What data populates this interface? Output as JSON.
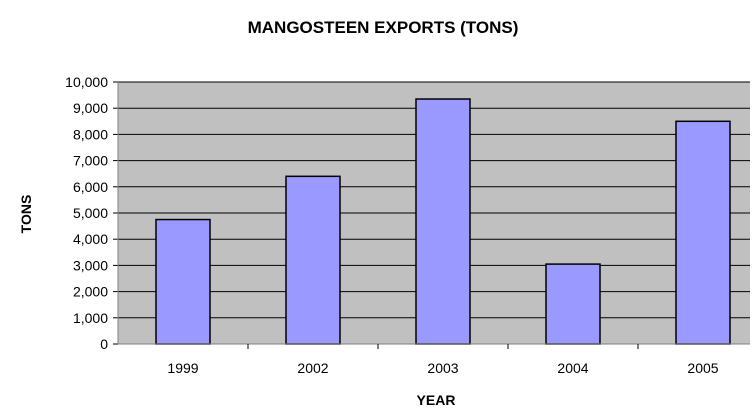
{
  "chart_data": {
    "type": "bar",
    "title": "MANGOSTEEN EXPORTS (TONS)",
    "xlabel": "YEAR",
    "ylabel": "TONS",
    "categories": [
      "1999",
      "2002",
      "2003",
      "2004",
      "2005"
    ],
    "values": [
      4750,
      6400,
      9350,
      3050,
      8500
    ],
    "ylim": [
      0,
      10000
    ],
    "yticks": [
      "0",
      "1,000",
      "2,000",
      "3,000",
      "4,000",
      "5,000",
      "6,000",
      "7,000",
      "8,000",
      "9,000",
      "10,000"
    ],
    "grid": true,
    "legend": "none",
    "colors": {
      "bar_fill": "#9999ff",
      "bar_stroke": "#000000",
      "plot_background": "#c0c0c0",
      "gridline": "#000000"
    }
  }
}
